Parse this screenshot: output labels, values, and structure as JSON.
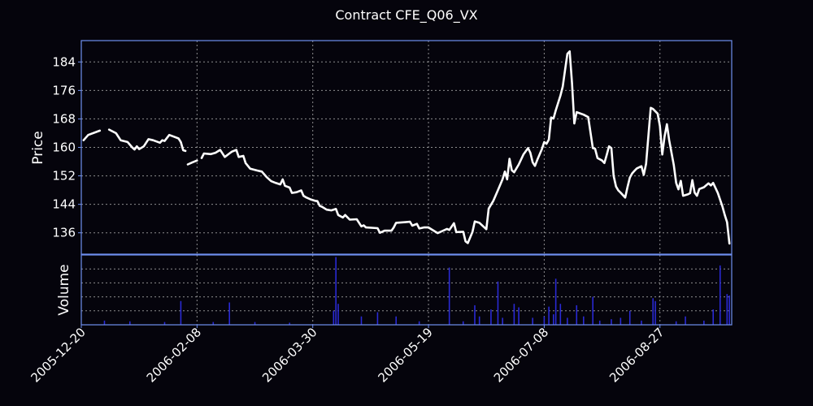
{
  "chart_data": {
    "type": "line",
    "title": "Contract CFE_Q06_VX",
    "price_panel": {
      "ylabel": "Price",
      "ylim": [
        130,
        190
      ],
      "yticks": [
        136,
        144,
        152,
        160,
        168,
        176,
        184
      ],
      "line_color": "#ffffff",
      "segments": [
        [
          [
            "2005-12-21",
            162
          ],
          [
            "2005-12-23",
            163.5
          ],
          [
            "2005-12-28",
            164.7
          ]
        ],
        [
          [
            "2006-01-01",
            165
          ],
          [
            "2006-01-04",
            164
          ],
          [
            "2006-01-06",
            162
          ],
          [
            "2006-01-09",
            161.5
          ],
          [
            "2006-01-11",
            160
          ],
          [
            "2006-01-12",
            159.4
          ],
          [
            "2006-01-13",
            160.3
          ],
          [
            "2006-01-14",
            159.5
          ],
          [
            "2006-01-16",
            160.3
          ],
          [
            "2006-01-18",
            162.3
          ],
          [
            "2006-01-20",
            162
          ],
          [
            "2006-01-23",
            161.3
          ],
          [
            "2006-01-24",
            162
          ],
          [
            "2006-01-25",
            161.8
          ],
          [
            "2006-01-27",
            163.5
          ],
          [
            "2006-01-29",
            163
          ],
          [
            "2006-01-31",
            162.5
          ],
          [
            "2006-02-01",
            161.5
          ],
          [
            "2006-02-02",
            159.2
          ],
          [
            "2006-02-03",
            159
          ]
        ],
        [
          [
            "2006-02-04",
            155.2
          ],
          [
            "2006-02-06",
            155.8
          ],
          [
            "2006-02-08",
            156.3
          ]
        ],
        [
          [
            "2006-02-10",
            157
          ],
          [
            "2006-02-11",
            158.3
          ],
          [
            "2006-02-14",
            158.1
          ],
          [
            "2006-02-16",
            158.5
          ],
          [
            "2006-02-18",
            159.3
          ],
          [
            "2006-02-20",
            157.3
          ],
          [
            "2006-02-22",
            158.3
          ],
          [
            "2006-02-23",
            158.8
          ],
          [
            "2006-02-25",
            159.3
          ],
          [
            "2006-02-26",
            157.3
          ],
          [
            "2006-02-28",
            157.6
          ],
          [
            "2006-03-01",
            155.6
          ],
          [
            "2006-03-03",
            154
          ],
          [
            "2006-03-06",
            153.5
          ],
          [
            "2006-03-08",
            153.2
          ],
          [
            "2006-03-10",
            151.7
          ],
          [
            "2006-03-12",
            150.5
          ],
          [
            "2006-03-14",
            150
          ],
          [
            "2006-03-16",
            149.6
          ],
          [
            "2006-03-17",
            151
          ],
          [
            "2006-03-18",
            149.2
          ],
          [
            "2006-03-20",
            148.7
          ],
          [
            "2006-03-21",
            147.2
          ],
          [
            "2006-03-23",
            147.4
          ],
          [
            "2006-03-25",
            147.9
          ],
          [
            "2006-03-26",
            146.4
          ],
          [
            "2006-03-27",
            146
          ],
          [
            "2006-03-29",
            145.4
          ],
          [
            "2006-03-31",
            145
          ],
          [
            "2006-04-01",
            144.9
          ],
          [
            "2006-04-02",
            143.6
          ],
          [
            "2006-04-03",
            143.3
          ],
          [
            "2006-04-05",
            142.5
          ],
          [
            "2006-04-07",
            142.3
          ],
          [
            "2006-04-09",
            142.7
          ],
          [
            "2006-04-10",
            141
          ],
          [
            "2006-04-12",
            140.3
          ],
          [
            "2006-04-13",
            141
          ],
          [
            "2006-04-15",
            139.7
          ],
          [
            "2006-04-18",
            139.8
          ],
          [
            "2006-04-20",
            137.8
          ],
          [
            "2006-04-21",
            138.1
          ],
          [
            "2006-04-22",
            137.5
          ],
          [
            "2006-04-27",
            137.3
          ],
          [
            "2006-04-28",
            136
          ],
          [
            "2006-04-30",
            136.6
          ],
          [
            "2006-05-03",
            136.6
          ],
          [
            "2006-05-04",
            137.5
          ],
          [
            "2006-05-05",
            138.8
          ],
          [
            "2006-05-09",
            139
          ],
          [
            "2006-05-11",
            139.1
          ],
          [
            "2006-05-12",
            138
          ],
          [
            "2006-05-14",
            138.5
          ],
          [
            "2006-05-15",
            137.2
          ],
          [
            "2006-05-17",
            137.5
          ],
          [
            "2006-05-19",
            137.5
          ],
          [
            "2006-05-21",
            136.7
          ],
          [
            "2006-05-23",
            135.9
          ],
          [
            "2006-05-25",
            136.5
          ],
          [
            "2006-05-27",
            137.1
          ],
          [
            "2006-05-28",
            136.8
          ],
          [
            "2006-05-30",
            138.7
          ],
          [
            "2006-05-31",
            136.2
          ],
          [
            "2006-06-03",
            136.3
          ],
          [
            "2006-06-04",
            133.6
          ],
          [
            "2006-06-05",
            133.1
          ],
          [
            "2006-06-07",
            136.2
          ],
          [
            "2006-06-08",
            139.2
          ],
          [
            "2006-06-10",
            138.8
          ],
          [
            "2006-06-13",
            137
          ],
          [
            "2006-06-14",
            142.8
          ],
          [
            "2006-06-16",
            145
          ],
          [
            "2006-06-18",
            148
          ],
          [
            "2006-06-20",
            151
          ],
          [
            "2006-06-21",
            153.2
          ],
          [
            "2006-06-22",
            151
          ],
          [
            "2006-06-23",
            156.8
          ],
          [
            "2006-06-24",
            153.6
          ],
          [
            "2006-06-25",
            153
          ],
          [
            "2006-06-27",
            155.2
          ],
          [
            "2006-06-29",
            158
          ],
          [
            "2006-07-01",
            159.8
          ],
          [
            "2006-07-02",
            158.5
          ],
          [
            "2006-07-03",
            155.8
          ],
          [
            "2006-07-04",
            154.8
          ],
          [
            "2006-07-05",
            156.5
          ],
          [
            "2006-07-07",
            159.5
          ],
          [
            "2006-07-08",
            161.5
          ],
          [
            "2006-07-09",
            161
          ],
          [
            "2006-07-10",
            162.2
          ],
          [
            "2006-07-11",
            168.4
          ],
          [
            "2006-07-12",
            168.1
          ],
          [
            "2006-07-13",
            170.4
          ],
          [
            "2006-07-15",
            174.5
          ],
          [
            "2006-07-16",
            177.1
          ],
          [
            "2006-07-17",
            181.7
          ],
          [
            "2006-07-18",
            186.3
          ],
          [
            "2006-07-19",
            187
          ],
          [
            "2006-07-20",
            178
          ],
          [
            "2006-07-21",
            166.7
          ],
          [
            "2006-07-22",
            169.9
          ],
          [
            "2006-07-25",
            169.2
          ],
          [
            "2006-07-27",
            168.5
          ],
          [
            "2006-07-29",
            159.8
          ],
          [
            "2006-07-30",
            159.6
          ],
          [
            "2006-07-31",
            157
          ],
          [
            "2006-08-02",
            156.3
          ],
          [
            "2006-08-03",
            155.6
          ],
          [
            "2006-08-04",
            157.9
          ],
          [
            "2006-08-05",
            160.3
          ],
          [
            "2006-08-06",
            159.8
          ],
          [
            "2006-08-07",
            152
          ],
          [
            "2006-08-08",
            149
          ],
          [
            "2006-08-09",
            147.9
          ],
          [
            "2006-08-10",
            147.3
          ],
          [
            "2006-08-12",
            145.9
          ],
          [
            "2006-08-13",
            148.9
          ],
          [
            "2006-08-14",
            151.5
          ],
          [
            "2006-08-15",
            152.7
          ],
          [
            "2006-08-16",
            153.4
          ],
          [
            "2006-08-17",
            154.1
          ],
          [
            "2006-08-19",
            154.7
          ],
          [
            "2006-08-20",
            152.3
          ],
          [
            "2006-08-21",
            155.4
          ],
          [
            "2006-08-22",
            163.1
          ],
          [
            "2006-08-23",
            171.1
          ],
          [
            "2006-08-24",
            170.8
          ],
          [
            "2006-08-26",
            169.5
          ],
          [
            "2006-08-27",
            166
          ],
          [
            "2006-08-28",
            158
          ],
          [
            "2006-08-29",
            163
          ],
          [
            "2006-08-30",
            166.5
          ],
          [
            "2006-08-31",
            162
          ],
          [
            "2006-09-02",
            155
          ],
          [
            "2006-09-03",
            150
          ],
          [
            "2006-09-04",
            148.2
          ],
          [
            "2006-09-05",
            150.6
          ],
          [
            "2006-09-06",
            146.4
          ],
          [
            "2006-09-08",
            146.8
          ],
          [
            "2006-09-09",
            147.1
          ],
          [
            "2006-09-10",
            150.8
          ],
          [
            "2006-09-11",
            147.3
          ],
          [
            "2006-09-12",
            146.4
          ],
          [
            "2006-09-13",
            148.3
          ],
          [
            "2006-09-15",
            148.8
          ],
          [
            "2006-09-17",
            149.9
          ],
          [
            "2006-09-18",
            149.3
          ],
          [
            "2006-09-19",
            150
          ],
          [
            "2006-09-21",
            147.2
          ],
          [
            "2006-09-23",
            143.4
          ],
          [
            "2006-09-24",
            141
          ],
          [
            "2006-09-25",
            139
          ],
          [
            "2006-09-26",
            133
          ]
        ]
      ]
    },
    "volume_panel": {
      "ylabel": "Volume",
      "ylim": [
        0,
        1.0
      ],
      "bar_color": "#2a2ad6",
      "bars": [
        [
          "2005-12-30",
          0.06
        ],
        [
          "2006-01-10",
          0.05
        ],
        [
          "2006-01-25",
          0.04
        ],
        [
          "2006-02-01",
          0.34
        ],
        [
          "2006-02-15",
          0.04
        ],
        [
          "2006-02-22",
          0.32
        ],
        [
          "2006-03-05",
          0.04
        ],
        [
          "2006-03-20",
          0.03
        ],
        [
          "2006-04-08",
          0.2
        ],
        [
          "2006-04-09",
          0.97
        ],
        [
          "2006-04-10",
          0.3
        ],
        [
          "2006-04-20",
          0.12
        ],
        [
          "2006-04-27",
          0.18
        ],
        [
          "2006-05-05",
          0.12
        ],
        [
          "2006-05-15",
          0.05
        ],
        [
          "2006-05-28",
          0.82
        ],
        [
          "2006-06-03",
          0.05
        ],
        [
          "2006-06-08",
          0.28
        ],
        [
          "2006-06-10",
          0.12
        ],
        [
          "2006-06-15",
          0.22
        ],
        [
          "2006-06-18",
          0.62
        ],
        [
          "2006-06-20",
          0.1
        ],
        [
          "2006-06-25",
          0.3
        ],
        [
          "2006-06-27",
          0.25
        ],
        [
          "2006-07-03",
          0.1
        ],
        [
          "2006-07-08",
          0.12
        ],
        [
          "2006-07-10",
          0.26
        ],
        [
          "2006-07-12",
          0.15
        ],
        [
          "2006-07-13",
          0.66
        ],
        [
          "2006-07-15",
          0.3
        ],
        [
          "2006-07-18",
          0.1
        ],
        [
          "2006-07-22",
          0.28
        ],
        [
          "2006-07-25",
          0.12
        ],
        [
          "2006-07-29",
          0.4
        ],
        [
          "2006-08-01",
          0.06
        ],
        [
          "2006-08-06",
          0.08
        ],
        [
          "2006-08-10",
          0.1
        ],
        [
          "2006-08-14",
          0.2
        ],
        [
          "2006-08-19",
          0.06
        ],
        [
          "2006-08-24",
          0.38
        ],
        [
          "2006-08-25",
          0.34
        ],
        [
          "2006-09-03",
          0.05
        ],
        [
          "2006-09-07",
          0.12
        ],
        [
          "2006-09-15",
          0.06
        ],
        [
          "2006-09-19",
          0.22
        ],
        [
          "2006-09-22",
          0.85
        ],
        [
          "2006-09-25",
          0.44
        ],
        [
          "2006-09-26",
          0.42
        ]
      ]
    },
    "x_axis": {
      "xlim": [
        "2005-12-20",
        "2006-09-27"
      ],
      "ticks": [
        "2005-12-20",
        "2006-02-08",
        "2006-03-30",
        "2006-05-19",
        "2006-07-08",
        "2006-08-27"
      ]
    },
    "grid": true,
    "colors": {
      "background": "#05040c",
      "axes": "#6f8ff0",
      "text": "#ffffff"
    }
  }
}
